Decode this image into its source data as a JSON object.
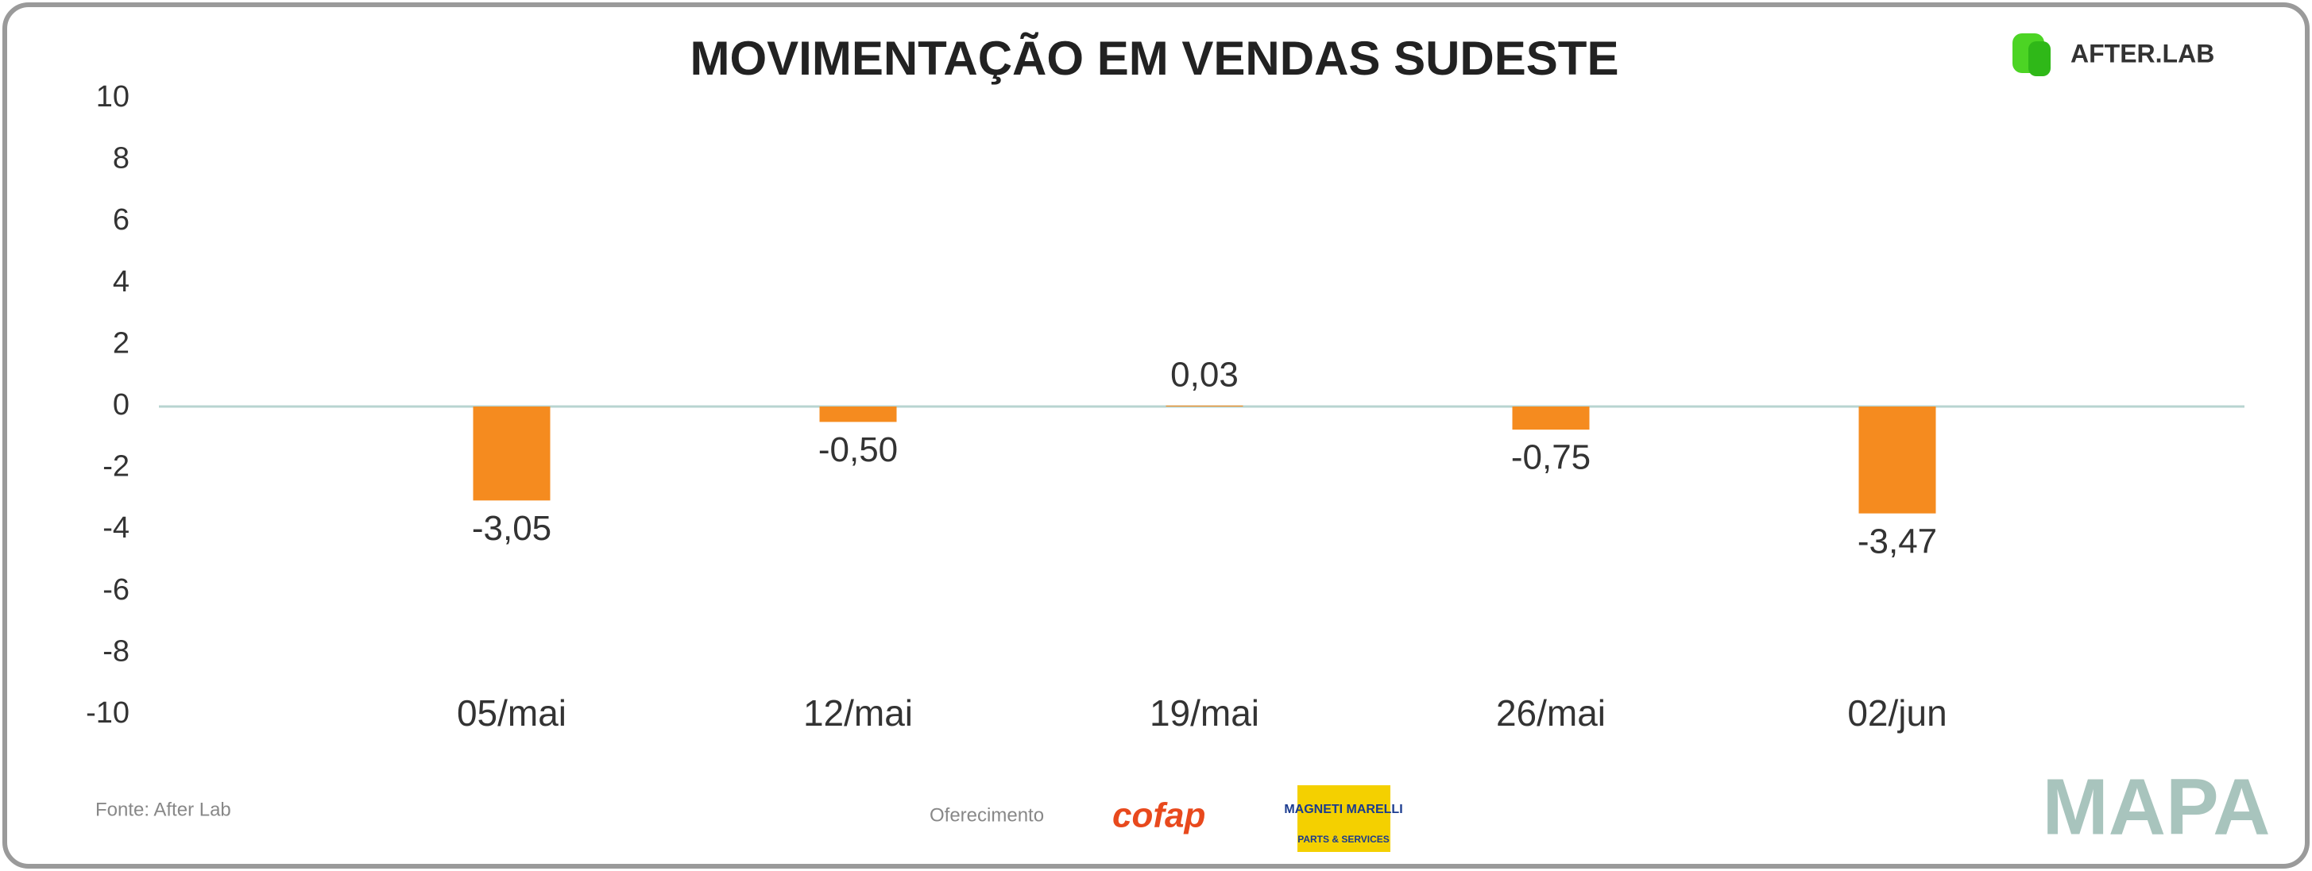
{
  "chart_data": {
    "type": "bar",
    "title": "MOVIMENTAÇÃO EM VENDAS SUDESTE",
    "categories": [
      "05/mai",
      "12/mai",
      "19/mai",
      "26/mai",
      "02/jun"
    ],
    "values": [
      -3.05,
      -0.5,
      0.03,
      -0.75,
      -3.47
    ],
    "value_labels": [
      "-3,05",
      "-0,50",
      "0,03",
      "-0,75",
      "-3,47"
    ],
    "color": "#f58b1f",
    "ylim": [
      -10,
      10
    ],
    "yticks": [
      10,
      8,
      6,
      4,
      2,
      0,
      -2,
      -4,
      -6,
      -8,
      -10
    ],
    "source": "Fonte: After Lab",
    "sponsor_label": "Oferecimento",
    "logos": [
      "AFTER.LAB",
      "cofap",
      "MAGNETI MARELLI",
      "PARTS & SERVICES",
      "MAPA"
    ]
  }
}
